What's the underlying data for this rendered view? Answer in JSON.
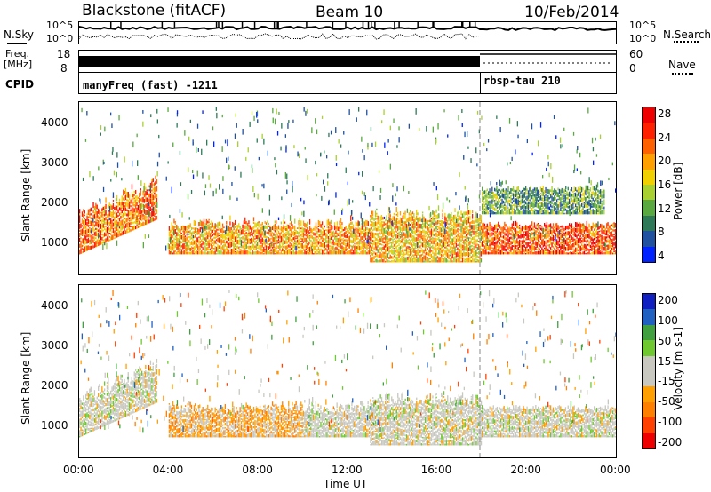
{
  "header": {
    "station": "Blackstone (fitACF)",
    "beam": "Beam 10",
    "date": "10/Feb/2014"
  },
  "sky_panel": {
    "left_label": "N.Sky",
    "right_label": "N.Search",
    "top_tick": "10^5",
    "bottom_tick": "10^0"
  },
  "freq_panel": {
    "left_label_line1": "Freq.",
    "left_label_line2": "[MHz]",
    "left_top_tick": "18",
    "left_bottom_tick": "8",
    "right_top_tick": "60",
    "right_bottom_tick": "0",
    "right_label": "Nave"
  },
  "cpid_panel": {
    "label": "CPID",
    "mode1": "manyFreq (fast) -1211",
    "mode2": "rbsp-tau 210"
  },
  "chart_data": [
    {
      "type": "heatmap",
      "title": "",
      "ylabel": "Slant Range [km]",
      "xlabel": "",
      "ylim": [
        200,
        4500
      ],
      "y_ticks": [
        "4000",
        "3000",
        "2000",
        "1000"
      ],
      "x_ticks": [
        "00:00",
        "04:00",
        "08:00",
        "12:00",
        "16:00",
        "20:00",
        "00:00"
      ],
      "colorbar": {
        "label": "Power [dB]",
        "ticks": [
          "28",
          "24",
          "20",
          "16",
          "12",
          "8",
          "4"
        ],
        "range": [
          0,
          30
        ],
        "colors": [
          "#0022ff",
          "#2050a0",
          "#2e7a58",
          "#5aa840",
          "#a8d030",
          "#f0d000",
          "#ffa000",
          "#ff6000",
          "#ff2000",
          "#ee0000"
        ]
      },
      "echo_bands": [
        {
          "start_hr": 0.0,
          "end_hr": 3.5,
          "value": 22,
          "desc": "main"
        },
        {
          "start_hr": 4.0,
          "end_hr": 13.0,
          "value": 20,
          "desc": "main"
        },
        {
          "start_hr": 13.0,
          "end_hr": 18.0,
          "value": 18,
          "desc": "main"
        },
        {
          "start_hr": 18.0,
          "end_hr": 24.0,
          "value": 24,
          "desc": "main"
        },
        {
          "start_hr": 18.0,
          "end_hr": 23.5,
          "value": 10,
          "desc": "upper"
        }
      ]
    },
    {
      "type": "heatmap",
      "title": "",
      "ylabel": "Slant Range [km]",
      "xlabel": "Time UT",
      "ylim": [
        200,
        4500
      ],
      "y_ticks": [
        "4000",
        "3000",
        "2000",
        "1000"
      ],
      "x_ticks": [
        "00:00",
        "04:00",
        "08:00",
        "12:00",
        "16:00",
        "20:00",
        "00:00"
      ],
      "colorbar": {
        "label": "Velocity [m s-1]",
        "ticks": [
          "200",
          "100",
          "50",
          "15",
          "-15",
          "-50",
          "-100",
          "-200"
        ],
        "range": [
          -250,
          250
        ],
        "colors": [
          "#ee0000",
          "#ff4000",
          "#ff8000",
          "#ffa000",
          "#c8c8c0",
          "#c8c8c0",
          "#70c830",
          "#40a040",
          "#2060c0",
          "#1020c0"
        ]
      },
      "echo_bands": [
        {
          "start_hr": 0.0,
          "end_hr": 3.5,
          "value": 0,
          "desc": "main"
        },
        {
          "start_hr": 4.0,
          "end_hr": 10.0,
          "value": -70,
          "desc": "main"
        },
        {
          "start_hr": 10.0,
          "end_hr": 18.0,
          "value": 0,
          "desc": "main"
        },
        {
          "start_hr": 18.0,
          "end_hr": 24.0,
          "value": 0,
          "desc": "main"
        }
      ]
    }
  ]
}
